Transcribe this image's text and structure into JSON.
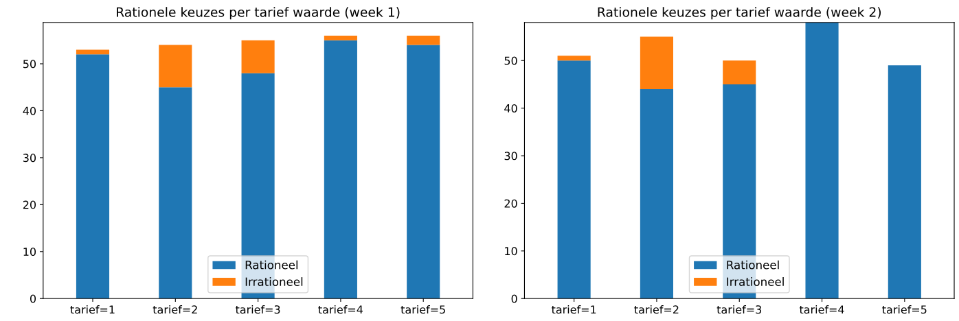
{
  "chart_data": [
    {
      "type": "bar",
      "title": "Rationele keuzes per tarief waarde (week 1)",
      "categories": [
        "tarief=1",
        "tarief=2",
        "tarief=3",
        "tarief=4",
        "tarief=5"
      ],
      "stacked": true,
      "series": [
        {
          "name": "Rationeel",
          "color": "#1f77b4",
          "values": [
            52,
            45,
            48,
            55,
            54
          ]
        },
        {
          "name": "Irrationeel",
          "color": "#ff7f0e",
          "values": [
            1,
            9,
            7,
            1,
            2
          ]
        }
      ],
      "ylim": [
        0,
        58.8
      ],
      "yticks": [
        0,
        10,
        20,
        30,
        40,
        50
      ],
      "legend": "bottom",
      "grid": false
    },
    {
      "type": "bar",
      "title": "Rationele keuzes per tarief waarde (week 2)",
      "categories": [
        "tarief=1",
        "tarief=2",
        "tarief=3",
        "tarief=4",
        "tarief=5"
      ],
      "stacked": true,
      "series": [
        {
          "name": "Rationeel",
          "color": "#1f77b4",
          "values": [
            50,
            44,
            45,
            58,
            49
          ]
        },
        {
          "name": "Irrationeel",
          "color": "#ff7f0e",
          "values": [
            1,
            11,
            5,
            0,
            0
          ]
        }
      ],
      "ylim": [
        0,
        58
      ],
      "yticks": [
        0,
        10,
        20,
        30,
        40,
        50
      ],
      "legend": "bottom",
      "grid": false
    }
  ]
}
